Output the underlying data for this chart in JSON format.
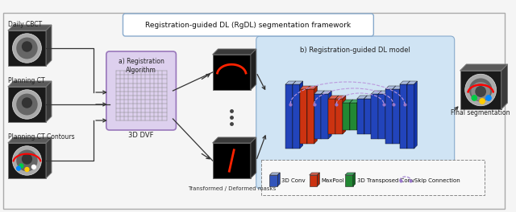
{
  "title": "Registration-guided DL (RgDL) segmentation framework",
  "label_a": "a) Registration\nAlgorithm",
  "label_b": "b) Registration-guided DL model",
  "label_dvf": "3D DVF",
  "label_transformed": "Transformed / Deformed masks",
  "label_final": "Final segmentation",
  "label_daily": "Daily CBCT",
  "label_planning": "Planning CT",
  "label_contours": "Planning CT Contours",
  "legend_items": [
    "3D Conv",
    "MaxPool",
    "3D Transposed Conv",
    "Skip Connection"
  ],
  "legend_colors": [
    "#3355bb",
    "#cc3311",
    "#228833",
    "#9977cc"
  ],
  "bg_color": "#f5f5f5",
  "outer_box_color": "#aaaaaa",
  "reg_box_color": "#ddd0ee",
  "dl_box_color": "#d0e4f4",
  "title_box_color": "#ffffff",
  "ct_face": "#1a1a1a",
  "ct_top": "#5a5a5a",
  "ct_side": "#3a3a3a",
  "mask_face": "#000000",
  "mask_top": "#3a3a3a",
  "mask_side": "#202020"
}
